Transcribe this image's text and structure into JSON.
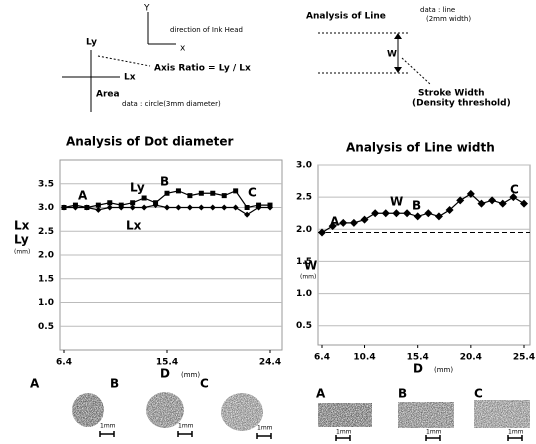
{
  "diagrams": {
    "area": {
      "y_axis": "Y",
      "direction": "direction of Ink Head",
      "x_axis": "x",
      "ly": "Ly",
      "lx": "Lx",
      "ratio": "Axis Ratio = Ly / Lx",
      "area": "Area",
      "data": "data : circle(3mm diameter)"
    },
    "line": {
      "title": "Analysis of Line",
      "data_1": "data : line",
      "data_2": "(2mm width)",
      "w": "W",
      "stroke_1": "Stroke Width",
      "stroke_2": "(Density threshold)"
    }
  },
  "chart_data": [
    {
      "type": "line",
      "title": "Analysis of Dot diameter",
      "x_label": "D",
      "x_unit": "(mm)",
      "y_label": [
        "Lx",
        "Ly"
      ],
      "y_unit": "(mm)",
      "x": [
        6.4,
        7.4,
        8.4,
        9.4,
        10.4,
        11.4,
        12.4,
        13.4,
        14.4,
        15.4,
        16.4,
        17.4,
        18.4,
        19.4,
        20.4,
        21.4,
        22.4,
        23.4,
        24.4
      ],
      "xlim": [
        6.4,
        24.4
      ],
      "xticks": [
        6.4,
        15.4,
        24.4
      ],
      "ylim": [
        0,
        4
      ],
      "yticks": [
        0.5,
        {
          "value": 1,
          "label": "1.0"
        },
        1.5,
        {
          "value": 2,
          "label": "2.0"
        },
        2.5,
        {
          "value": 3,
          "label": "3.0"
        },
        3.5
      ],
      "grid": true,
      "series": [
        {
          "name": "Ly",
          "color": "#000000",
          "marker": "square",
          "values": [
            3.0,
            3.05,
            3.0,
            3.05,
            3.1,
            3.05,
            3.1,
            3.2,
            3.1,
            3.3,
            3.35,
            3.25,
            3.3,
            3.3,
            3.25,
            3.35,
            3.0,
            3.05,
            3.05
          ]
        },
        {
          "name": "Lx",
          "color": "#000000",
          "marker": "diamond",
          "values": [
            3.0,
            3.0,
            3.0,
            2.95,
            3.0,
            3.0,
            3.0,
            3.0,
            3.05,
            3.0,
            3.0,
            3.0,
            3.0,
            3.0,
            3.0,
            3.0,
            2.85,
            3.0,
            3.0
          ]
        }
      ],
      "annotations": [
        "A",
        "B",
        "C"
      ]
    },
    {
      "type": "line",
      "title": "Analysis of Line width",
      "x_label": "D",
      "x_unit": "(mm)",
      "y_label": [
        "W"
      ],
      "y_unit": "(mm)",
      "x": [
        6.4,
        7.4,
        8.4,
        9.4,
        10.4,
        11.4,
        12.4,
        13.4,
        14.4,
        15.4,
        16.4,
        17.4,
        18.4,
        19.4,
        20.4,
        21.4,
        22.4,
        23.4,
        24.4,
        25.4
      ],
      "xlim": [
        6.4,
        25.4
      ],
      "xticks": [
        6.4,
        10.4,
        15.4,
        20.4,
        25.4
      ],
      "ylim": [
        0.2,
        3.0
      ],
      "yticks": [
        0.5,
        {
          "value": 1,
          "label": "1.0"
        },
        1.5,
        {
          "value": 2,
          "label": "2.0"
        },
        2.5,
        {
          "value": 3,
          "label": "3.0"
        }
      ],
      "grid": true,
      "reference_line": 1.95,
      "series": [
        {
          "name": "W",
          "color": "#000000",
          "marker": "diamond",
          "values": [
            1.95,
            2.05,
            2.1,
            2.1,
            2.15,
            2.25,
            2.25,
            2.25,
            2.25,
            2.2,
            2.25,
            2.2,
            2.3,
            2.45,
            2.55,
            2.4,
            2.45,
            2.4,
            2.5,
            2.4
          ]
        }
      ],
      "annotations": [
        "A",
        "B",
        "C"
      ]
    }
  ],
  "samples": {
    "dots": {
      "labels": [
        "A",
        "B",
        "C"
      ],
      "scale": "1mm"
    },
    "lines": {
      "labels": [
        "A",
        "B",
        "C"
      ],
      "scale": "1mm"
    }
  }
}
